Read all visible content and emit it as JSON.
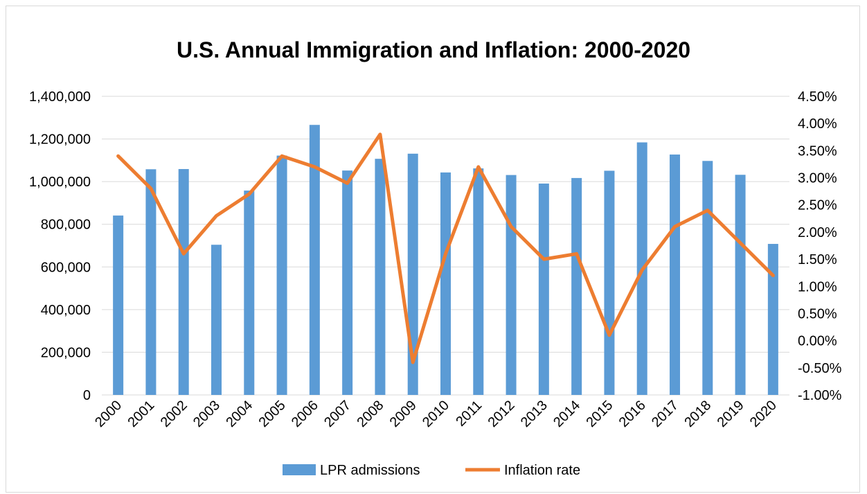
{
  "chart_data": {
    "type": "bar",
    "title": "U.S. Annual Immigration and Inflation: 2000-2020",
    "categories": [
      "2000",
      "2001",
      "2002",
      "2003",
      "2004",
      "2005",
      "2006",
      "2007",
      "2008",
      "2009",
      "2010",
      "2011",
      "2012",
      "2013",
      "2014",
      "2015",
      "2016",
      "2017",
      "2018",
      "2019",
      "2020"
    ],
    "series": [
      {
        "name": "LPR admissions",
        "type": "bar",
        "axis": "left",
        "color": "#5B9BD5",
        "values": [
          841000,
          1058000,
          1059000,
          704000,
          958000,
          1122000,
          1266000,
          1052000,
          1107000,
          1131000,
          1043000,
          1062000,
          1031000,
          991000,
          1017000,
          1051000,
          1184000,
          1127000,
          1097000,
          1032000,
          708000
        ]
      },
      {
        "name": "Inflation rate",
        "type": "line",
        "axis": "right",
        "color": "#ED7D31",
        "values": [
          3.4,
          2.8,
          1.6,
          2.3,
          2.7,
          3.4,
          3.2,
          2.9,
          3.8,
          -0.4,
          1.6,
          3.2,
          2.1,
          1.5,
          1.6,
          0.1,
          1.3,
          2.1,
          2.4,
          1.8,
          1.2
        ]
      }
    ],
    "y_left": {
      "min": 0,
      "max": 1400000,
      "step": 200000,
      "tick_labels": [
        "0",
        "200,000",
        "400,000",
        "600,000",
        "800,000",
        "1,000,000",
        "1,200,000",
        "1,400,000"
      ]
    },
    "y_right": {
      "min": -1.0,
      "max": 4.5,
      "step": 0.5,
      "tick_labels": [
        "-1.00%",
        "-0.50%",
        "0.00%",
        "0.50%",
        "1.00%",
        "1.50%",
        "2.00%",
        "2.50%",
        "3.00%",
        "3.50%",
        "4.00%",
        "4.50%"
      ]
    },
    "grid": true,
    "legend_position": "bottom"
  }
}
